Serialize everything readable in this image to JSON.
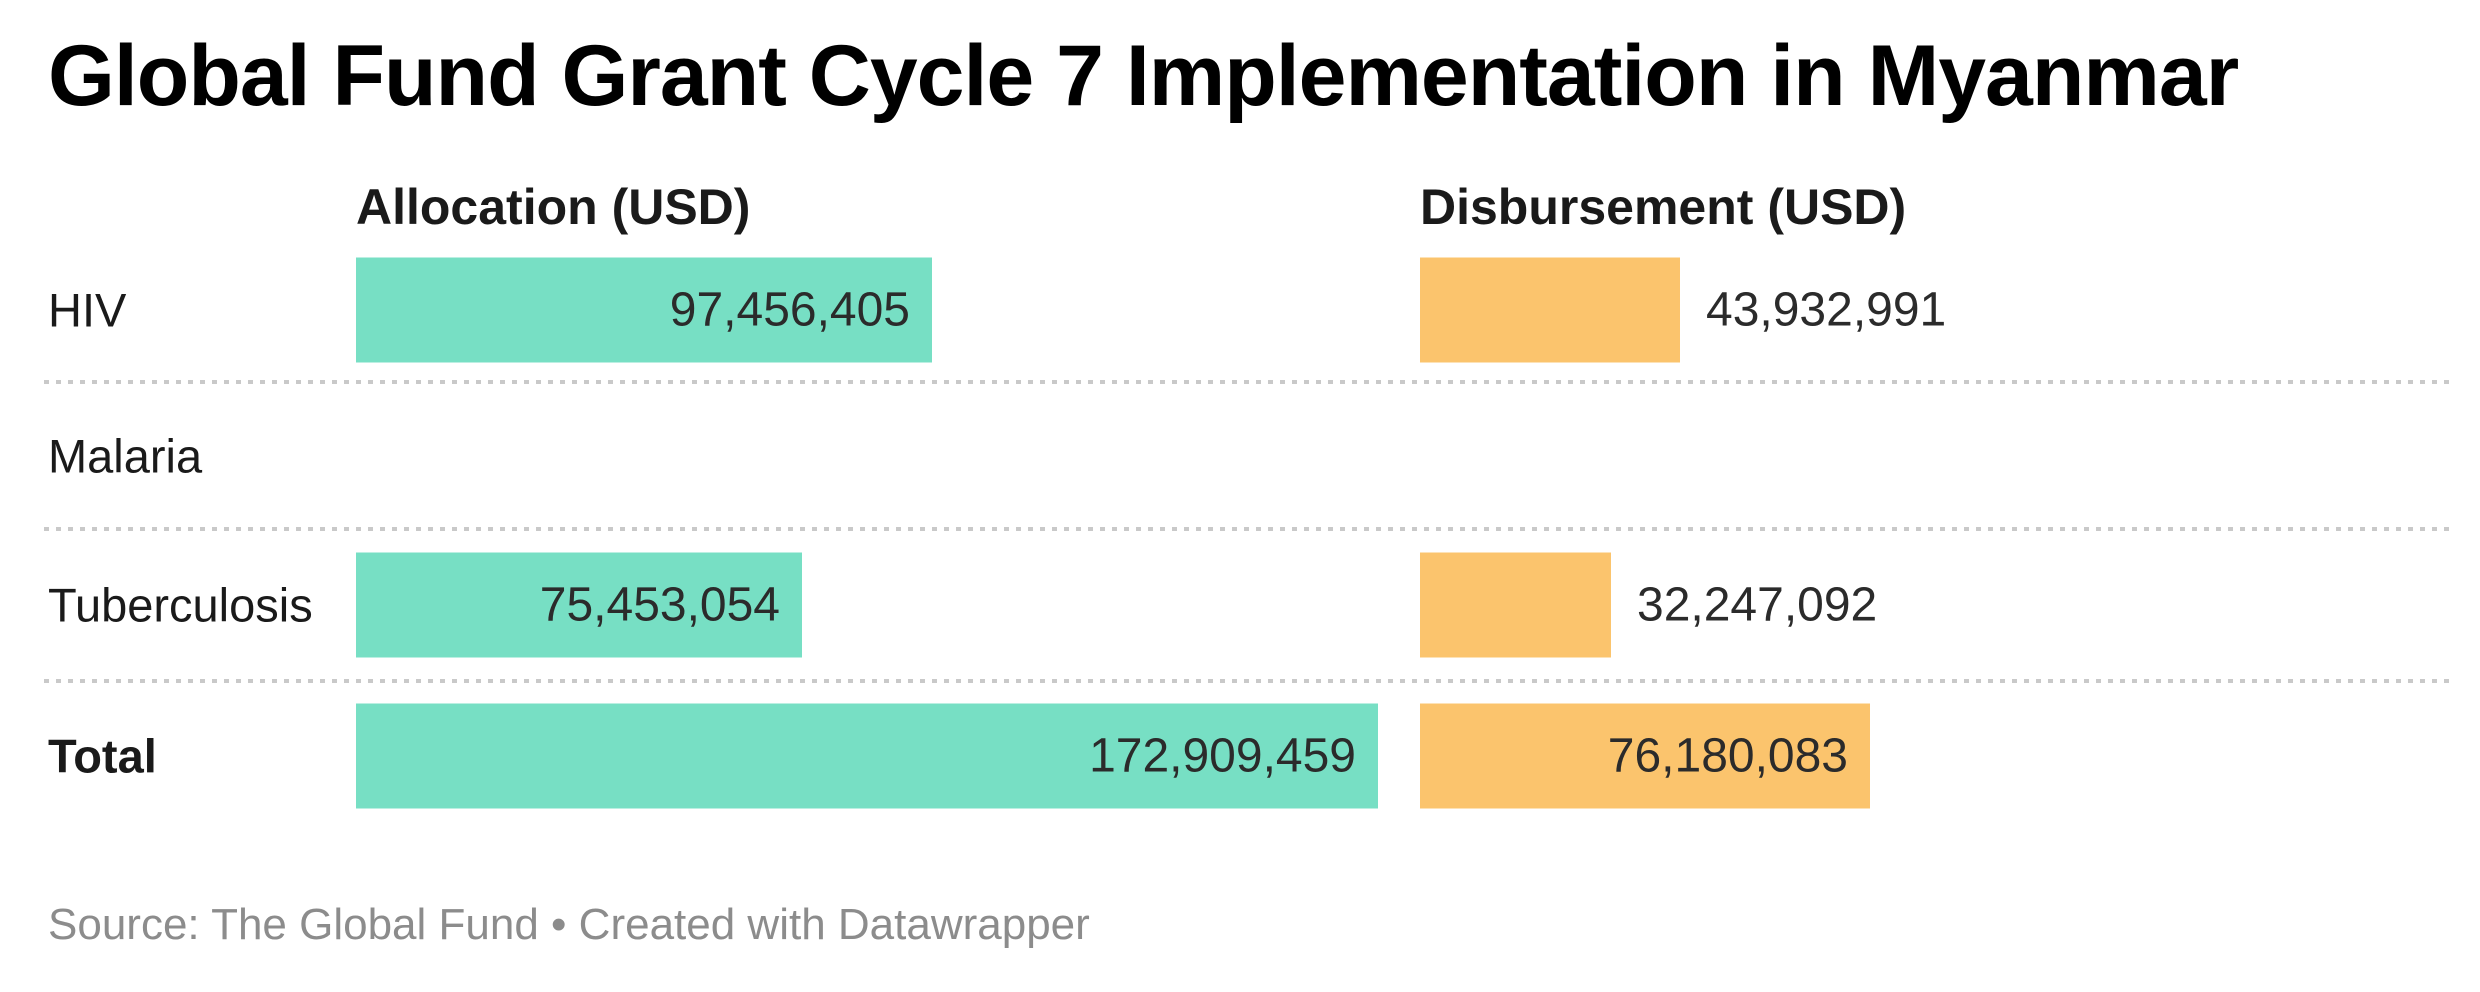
{
  "title": "Global Fund Grant Cycle 7 Implementation in Myanmar",
  "columns": {
    "allocation": "Allocation (USD)",
    "disbursement": "Disbursement (USD)"
  },
  "rows": [
    {
      "label": "HIV",
      "allocation": 97456405,
      "allocation_label": "97,456,405",
      "disbursement": 43932991,
      "disbursement_label": "43,932,991"
    },
    {
      "label": "Malaria",
      "allocation": null,
      "allocation_label": "",
      "disbursement": null,
      "disbursement_label": ""
    },
    {
      "label": "Tuberculosis",
      "allocation": 75453054,
      "allocation_label": "75,453,054",
      "disbursement": 32247092,
      "disbursement_label": "32,247,092"
    },
    {
      "label": "Total",
      "allocation": 172909459,
      "allocation_label": "172,909,459",
      "disbursement": 76180083,
      "disbursement_label": "76,180,083"
    }
  ],
  "footer": "Source: The Global Fund • Created with Datawrapper",
  "colors": {
    "allocation_bar": "#77dfc4",
    "disbursement_bar": "#fbc46d",
    "value_text": "#2b2b2b",
    "footer_text": "#8c8c8c",
    "separator": "#c9c9c9"
  },
  "chart_data": {
    "type": "bar",
    "orientation": "horizontal",
    "title": "Global Fund Grant Cycle 7 Implementation in Myanmar",
    "categories": [
      "HIV",
      "Malaria",
      "Tuberculosis",
      "Total"
    ],
    "series": [
      {
        "name": "Allocation (USD)",
        "values": [
          97456405,
          null,
          75453054,
          172909459
        ]
      },
      {
        "name": "Disbursement (USD)",
        "values": [
          43932991,
          null,
          32247092,
          76180083
        ]
      }
    ],
    "value_label_format": "thousands-comma",
    "legend_position": "column-headers",
    "grid": "dotted-row-separators",
    "source": "The Global Fund",
    "created_with": "Datawrapper"
  }
}
